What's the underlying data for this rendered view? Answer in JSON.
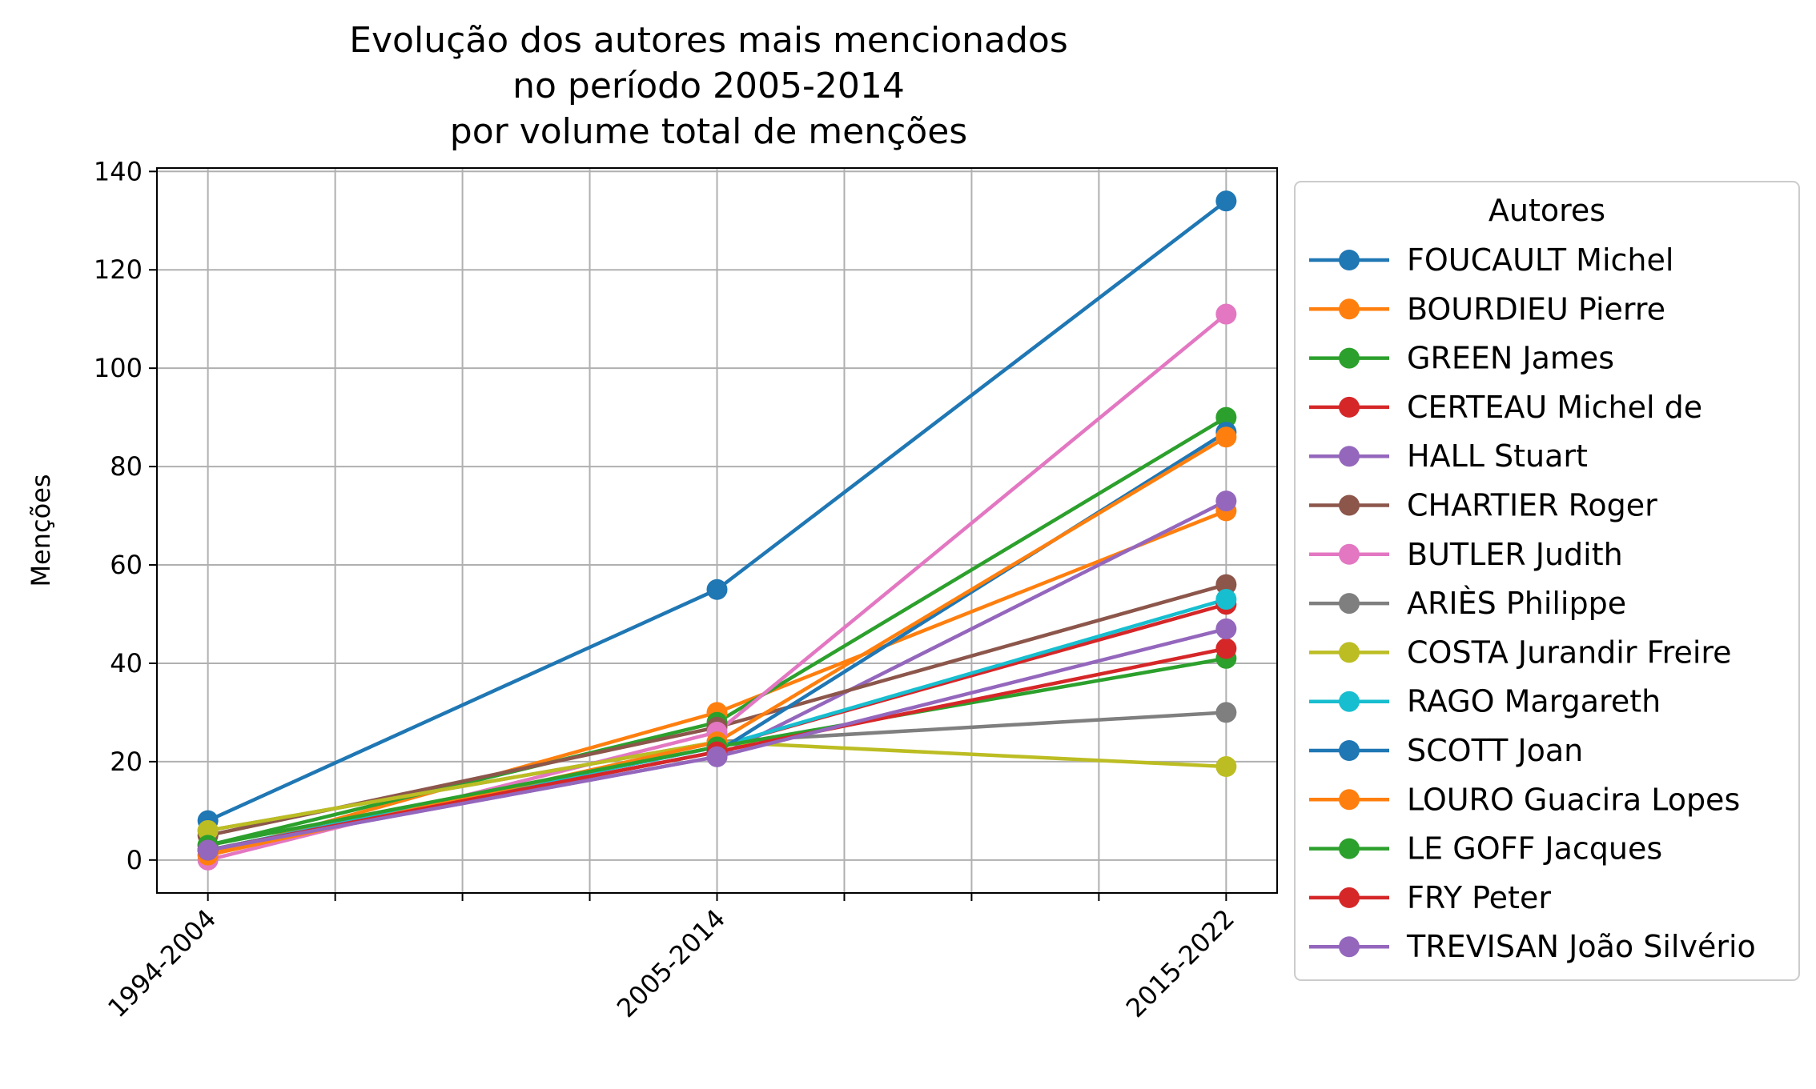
{
  "chart_data": {
    "type": "line",
    "title_lines": [
      "Evolução dos autores mais mencionados",
      "no período 2005-2014",
      "por volume total de menções"
    ],
    "xlabel": "",
    "ylabel": "Menções",
    "categories": [
      "1994-2004",
      "2005-2014",
      "2015-2022"
    ],
    "ylim": [
      -6.7,
      140.7
    ],
    "yticks": [
      0,
      20,
      40,
      60,
      80,
      100,
      120,
      140
    ],
    "grid": true,
    "legend": {
      "title": "Autores",
      "placement": "outside-right"
    },
    "series": [
      {
        "name": "FOUCAULT Michel",
        "color": "#1f77b4",
        "values": [
          8,
          55,
          134
        ]
      },
      {
        "name": "BOURDIEU Pierre",
        "color": "#ff7f0e",
        "values": [
          1,
          30,
          71
        ]
      },
      {
        "name": "GREEN James",
        "color": "#2ca02c",
        "values": [
          3,
          28,
          90
        ]
      },
      {
        "name": "CERTEAU Michel de",
        "color": "#d62728",
        "values": [
          2,
          23,
          52
        ]
      },
      {
        "name": "HALL Stuart",
        "color": "#9467bd",
        "values": [
          2,
          21,
          73
        ]
      },
      {
        "name": "CHARTIER Roger",
        "color": "#8c564b",
        "values": [
          5,
          27,
          56
        ]
      },
      {
        "name": "BUTLER Judith",
        "color": "#e377c2",
        "values": [
          0,
          26,
          111
        ]
      },
      {
        "name": "ARIÈS Philippe",
        "color": "#7f7f7f",
        "values": [
          6,
          24,
          30
        ]
      },
      {
        "name": "COSTA Jurandir Freire",
        "color": "#bcbd22",
        "values": [
          6,
          24,
          19
        ]
      },
      {
        "name": "RAGO Margareth",
        "color": "#17becf",
        "values": [
          2,
          23,
          53
        ]
      },
      {
        "name": "SCOTT Joan",
        "color": "#1f77b4",
        "values": [
          2,
          22,
          87
        ]
      },
      {
        "name": "LOURO Guacira Lopes",
        "color": "#ff7f0e",
        "values": [
          1,
          24,
          86
        ]
      },
      {
        "name": "LE GOFF Jacques",
        "color": "#2ca02c",
        "values": [
          3,
          23,
          41
        ]
      },
      {
        "name": "FRY Peter",
        "color": "#d62728",
        "values": [
          2,
          22,
          43
        ]
      },
      {
        "name": "TREVISAN João Silvério",
        "color": "#9467bd",
        "values": [
          2,
          21,
          47
        ]
      }
    ]
  }
}
